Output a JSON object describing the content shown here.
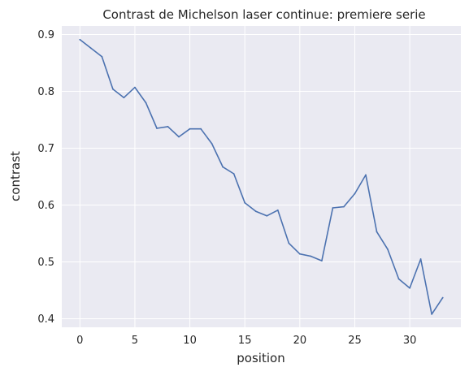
{
  "chart_data": {
    "type": "line",
    "title": "Contrast de Michelson laser continue: premiere serie",
    "xlabel": "position",
    "ylabel": "contrast",
    "xlim": [
      -1.65,
      34.65
    ],
    "ylim": [
      0.385,
      0.915
    ],
    "xticks": [
      0,
      5,
      10,
      15,
      20,
      25,
      30
    ],
    "xtick_labels": [
      "0",
      "5",
      "10",
      "15",
      "20",
      "25",
      "30"
    ],
    "yticks": [
      0.4,
      0.5,
      0.6,
      0.7,
      0.8,
      0.9
    ],
    "ytick_labels": [
      "0.4",
      "0.5",
      "0.6",
      "0.7",
      "0.8",
      "0.9"
    ],
    "grid": true,
    "background": "#eaeaf2",
    "grid_color": "#ffffff",
    "series": [
      {
        "color": "#4c72b0",
        "x": [
          0,
          1,
          2,
          3,
          4,
          5,
          6,
          7,
          8,
          9,
          10,
          11,
          12,
          13,
          14,
          15,
          16,
          17,
          18,
          19,
          20,
          21,
          22,
          23,
          24,
          25,
          26,
          27,
          28,
          29,
          30,
          31,
          32,
          33
        ],
        "values": [
          0.891,
          0.876,
          0.861,
          0.804,
          0.789,
          0.807,
          0.78,
          0.735,
          0.738,
          0.72,
          0.734,
          0.734,
          0.708,
          0.667,
          0.655,
          0.604,
          0.589,
          0.581,
          0.591,
          0.533,
          0.514,
          0.51,
          0.502,
          0.595,
          0.597,
          0.62,
          0.653,
          0.553,
          0.522,
          0.47,
          0.454,
          0.505,
          0.408,
          0.437
        ]
      }
    ]
  }
}
